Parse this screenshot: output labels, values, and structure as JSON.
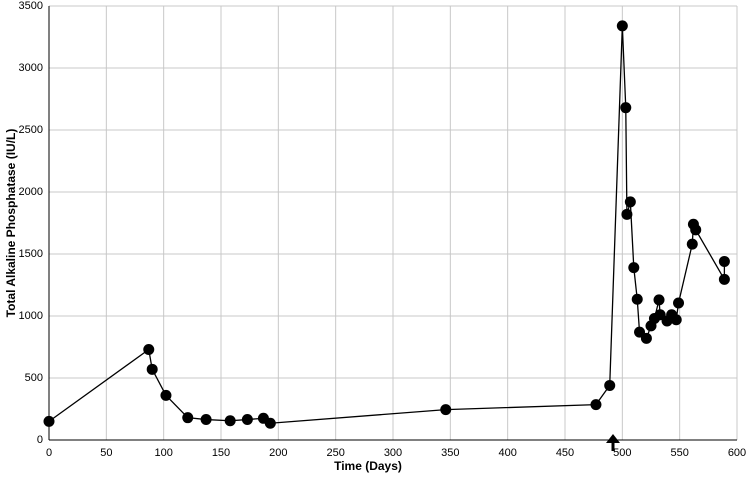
{
  "chart_data": {
    "type": "line",
    "x_label": "Time   (Days)",
    "y_label": "Total Alkaline Phosphatase (IU/L)",
    "x": [
      0,
      87,
      90,
      102,
      121,
      137,
      158,
      173,
      187,
      193,
      346,
      477,
      489,
      500,
      503,
      504,
      507,
      510,
      513,
      515,
      521,
      525,
      528,
      532,
      533,
      539,
      543,
      547,
      549,
      561,
      562,
      564,
      589,
      589
    ],
    "series": [
      {
        "color": "#000000",
        "values": [
          150,
          730,
          570,
          360,
          180,
          165,
          155,
          165,
          175,
          135,
          245,
          285,
          440,
          3340,
          2680,
          1820,
          1920,
          1390,
          1135,
          870,
          820,
          920,
          980,
          1130,
          1010,
          960,
          1010,
          970,
          1105,
          1580,
          1740,
          1695,
          1295,
          1440
        ]
      }
    ],
    "xlim": [
      0,
      600
    ],
    "xticks": [
      0,
      50,
      100,
      150,
      200,
      250,
      300,
      350,
      400,
      450,
      500,
      550,
      600
    ],
    "ylim": [
      0,
      3500
    ],
    "yticks": [
      0,
      500,
      1000,
      1500,
      2000,
      2500,
      3000,
      3500
    ],
    "grid": true
  }
}
